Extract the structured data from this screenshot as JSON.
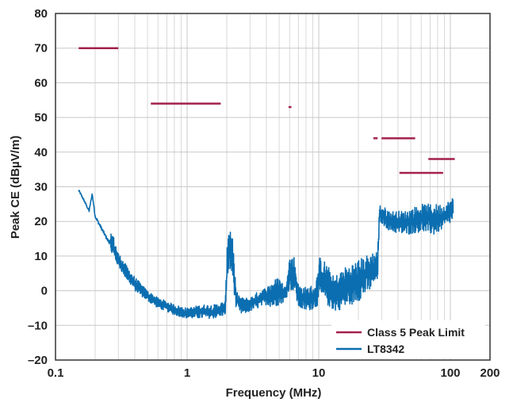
{
  "chart_data": {
    "type": "line",
    "title": "",
    "xlabel": "Frequency (MHz)",
    "ylabel": "Peak CE (dBµV/m)",
    "x_scale": "log",
    "xlim": [
      0.1,
      200
    ],
    "ylim": [
      -20,
      80
    ],
    "x_ticks": [
      {
        "value": 0.1,
        "label": "0.1"
      },
      {
        "value": 1,
        "label": "1"
      },
      {
        "value": 10,
        "label": "10"
      },
      {
        "value": 100,
        "label": "100"
      },
      {
        "value": 200,
        "label": "200"
      }
    ],
    "y_ticks": [
      {
        "value": 80,
        "label": "80"
      },
      {
        "value": 70,
        "label": "70"
      },
      {
        "value": 60,
        "label": "60"
      },
      {
        "value": 50,
        "label": "50"
      },
      {
        "value": 40,
        "label": "40"
      },
      {
        "value": 30,
        "label": "30"
      },
      {
        "value": 20,
        "label": "20"
      },
      {
        "value": 10,
        "label": "10"
      },
      {
        "value": 0,
        "label": "0"
      },
      {
        "value": -10,
        "label": "–10"
      },
      {
        "value": -20,
        "label": "–20"
      }
    ],
    "grid": true,
    "legend_position": "bottom-right",
    "colors": {
      "limit": "#a3204a",
      "measurement": "#0b6eb0",
      "grid": "#c8c8c8",
      "frame": "#333333"
    },
    "series": [
      {
        "name": "Class 5 Peak Limit",
        "style": "segments",
        "segments": [
          {
            "x": [
              0.15,
              0.3
            ],
            "y": 70
          },
          {
            "x": [
              0.53,
              1.8
            ],
            "y": 54
          },
          {
            "x": [
              5.9,
              6.2
            ],
            "y": 53
          },
          {
            "x": [
              26,
              28
            ],
            "y": 44
          },
          {
            "x": [
              30,
              54
            ],
            "y": 44
          },
          {
            "x": [
              41,
              88
            ],
            "y": 34
          },
          {
            "x": [
              68,
              108
            ],
            "y": 38
          }
        ]
      },
      {
        "name": "LT8342",
        "style": "line",
        "envelope": [
          {
            "x": 0.15,
            "lo": 28,
            "hi": 30
          },
          {
            "x": 0.165,
            "lo": 25,
            "hi": 27
          },
          {
            "x": 0.18,
            "lo": 22,
            "hi": 24
          },
          {
            "x": 0.19,
            "lo": 27,
            "hi": 29
          },
          {
            "x": 0.2,
            "lo": 20,
            "hi": 23
          },
          {
            "x": 0.22,
            "lo": 17,
            "hi": 20
          },
          {
            "x": 0.25,
            "lo": 13,
            "hi": 16
          },
          {
            "x": 0.27,
            "lo": 10,
            "hi": 17
          },
          {
            "x": 0.3,
            "lo": 7,
            "hi": 11
          },
          {
            "x": 0.35,
            "lo": 3,
            "hi": 7
          },
          {
            "x": 0.4,
            "lo": 0,
            "hi": 4
          },
          {
            "x": 0.5,
            "lo": -3,
            "hi": 0
          },
          {
            "x": 0.6,
            "lo": -5,
            "hi": -2
          },
          {
            "x": 0.7,
            "lo": -6,
            "hi": -3
          },
          {
            "x": 0.8,
            "lo": -7,
            "hi": -4
          },
          {
            "x": 1.0,
            "lo": -8,
            "hi": -5
          },
          {
            "x": 1.3,
            "lo": -8,
            "hi": -4
          },
          {
            "x": 1.6,
            "lo": -8,
            "hi": -4
          },
          {
            "x": 1.95,
            "lo": -7,
            "hi": -3
          },
          {
            "x": 2.05,
            "lo": 5,
            "hi": 21
          },
          {
            "x": 2.2,
            "lo": 4,
            "hi": 18
          },
          {
            "x": 2.35,
            "lo": -5,
            "hi": 0
          },
          {
            "x": 2.6,
            "lo": -7,
            "hi": -2
          },
          {
            "x": 3.0,
            "lo": -6,
            "hi": -2
          },
          {
            "x": 3.5,
            "lo": -5,
            "hi": 0
          },
          {
            "x": 4.0,
            "lo": -4,
            "hi": 1
          },
          {
            "x": 4.5,
            "lo": -5,
            "hi": 3
          },
          {
            "x": 5.0,
            "lo": -4,
            "hi": 4
          },
          {
            "x": 5.6,
            "lo": -3,
            "hi": 1
          },
          {
            "x": 5.9,
            "lo": 0,
            "hi": 10
          },
          {
            "x": 6.5,
            "lo": 0,
            "hi": 10
          },
          {
            "x": 7.0,
            "lo": -5,
            "hi": 2
          },
          {
            "x": 8.0,
            "lo": -6,
            "hi": 1
          },
          {
            "x": 9.5,
            "lo": -5,
            "hi": 2
          },
          {
            "x": 10.2,
            "lo": -3,
            "hi": 10
          },
          {
            "x": 11.5,
            "lo": -4,
            "hi": 8
          },
          {
            "x": 13,
            "lo": -6,
            "hi": 4
          },
          {
            "x": 16,
            "lo": -5,
            "hi": 7
          },
          {
            "x": 20,
            "lo": -3,
            "hi": 9
          },
          {
            "x": 25,
            "lo": 0,
            "hi": 11
          },
          {
            "x": 28,
            "lo": 3,
            "hi": 12
          },
          {
            "x": 29,
            "lo": 20,
            "hi": 25
          },
          {
            "x": 35,
            "lo": 17,
            "hi": 23
          },
          {
            "x": 45,
            "lo": 16,
            "hi": 23
          },
          {
            "x": 60,
            "lo": 17,
            "hi": 25
          },
          {
            "x": 75,
            "lo": 16,
            "hi": 25
          },
          {
            "x": 90,
            "lo": 18,
            "hi": 25
          },
          {
            "x": 105,
            "lo": 20,
            "hi": 27
          }
        ]
      }
    ]
  }
}
